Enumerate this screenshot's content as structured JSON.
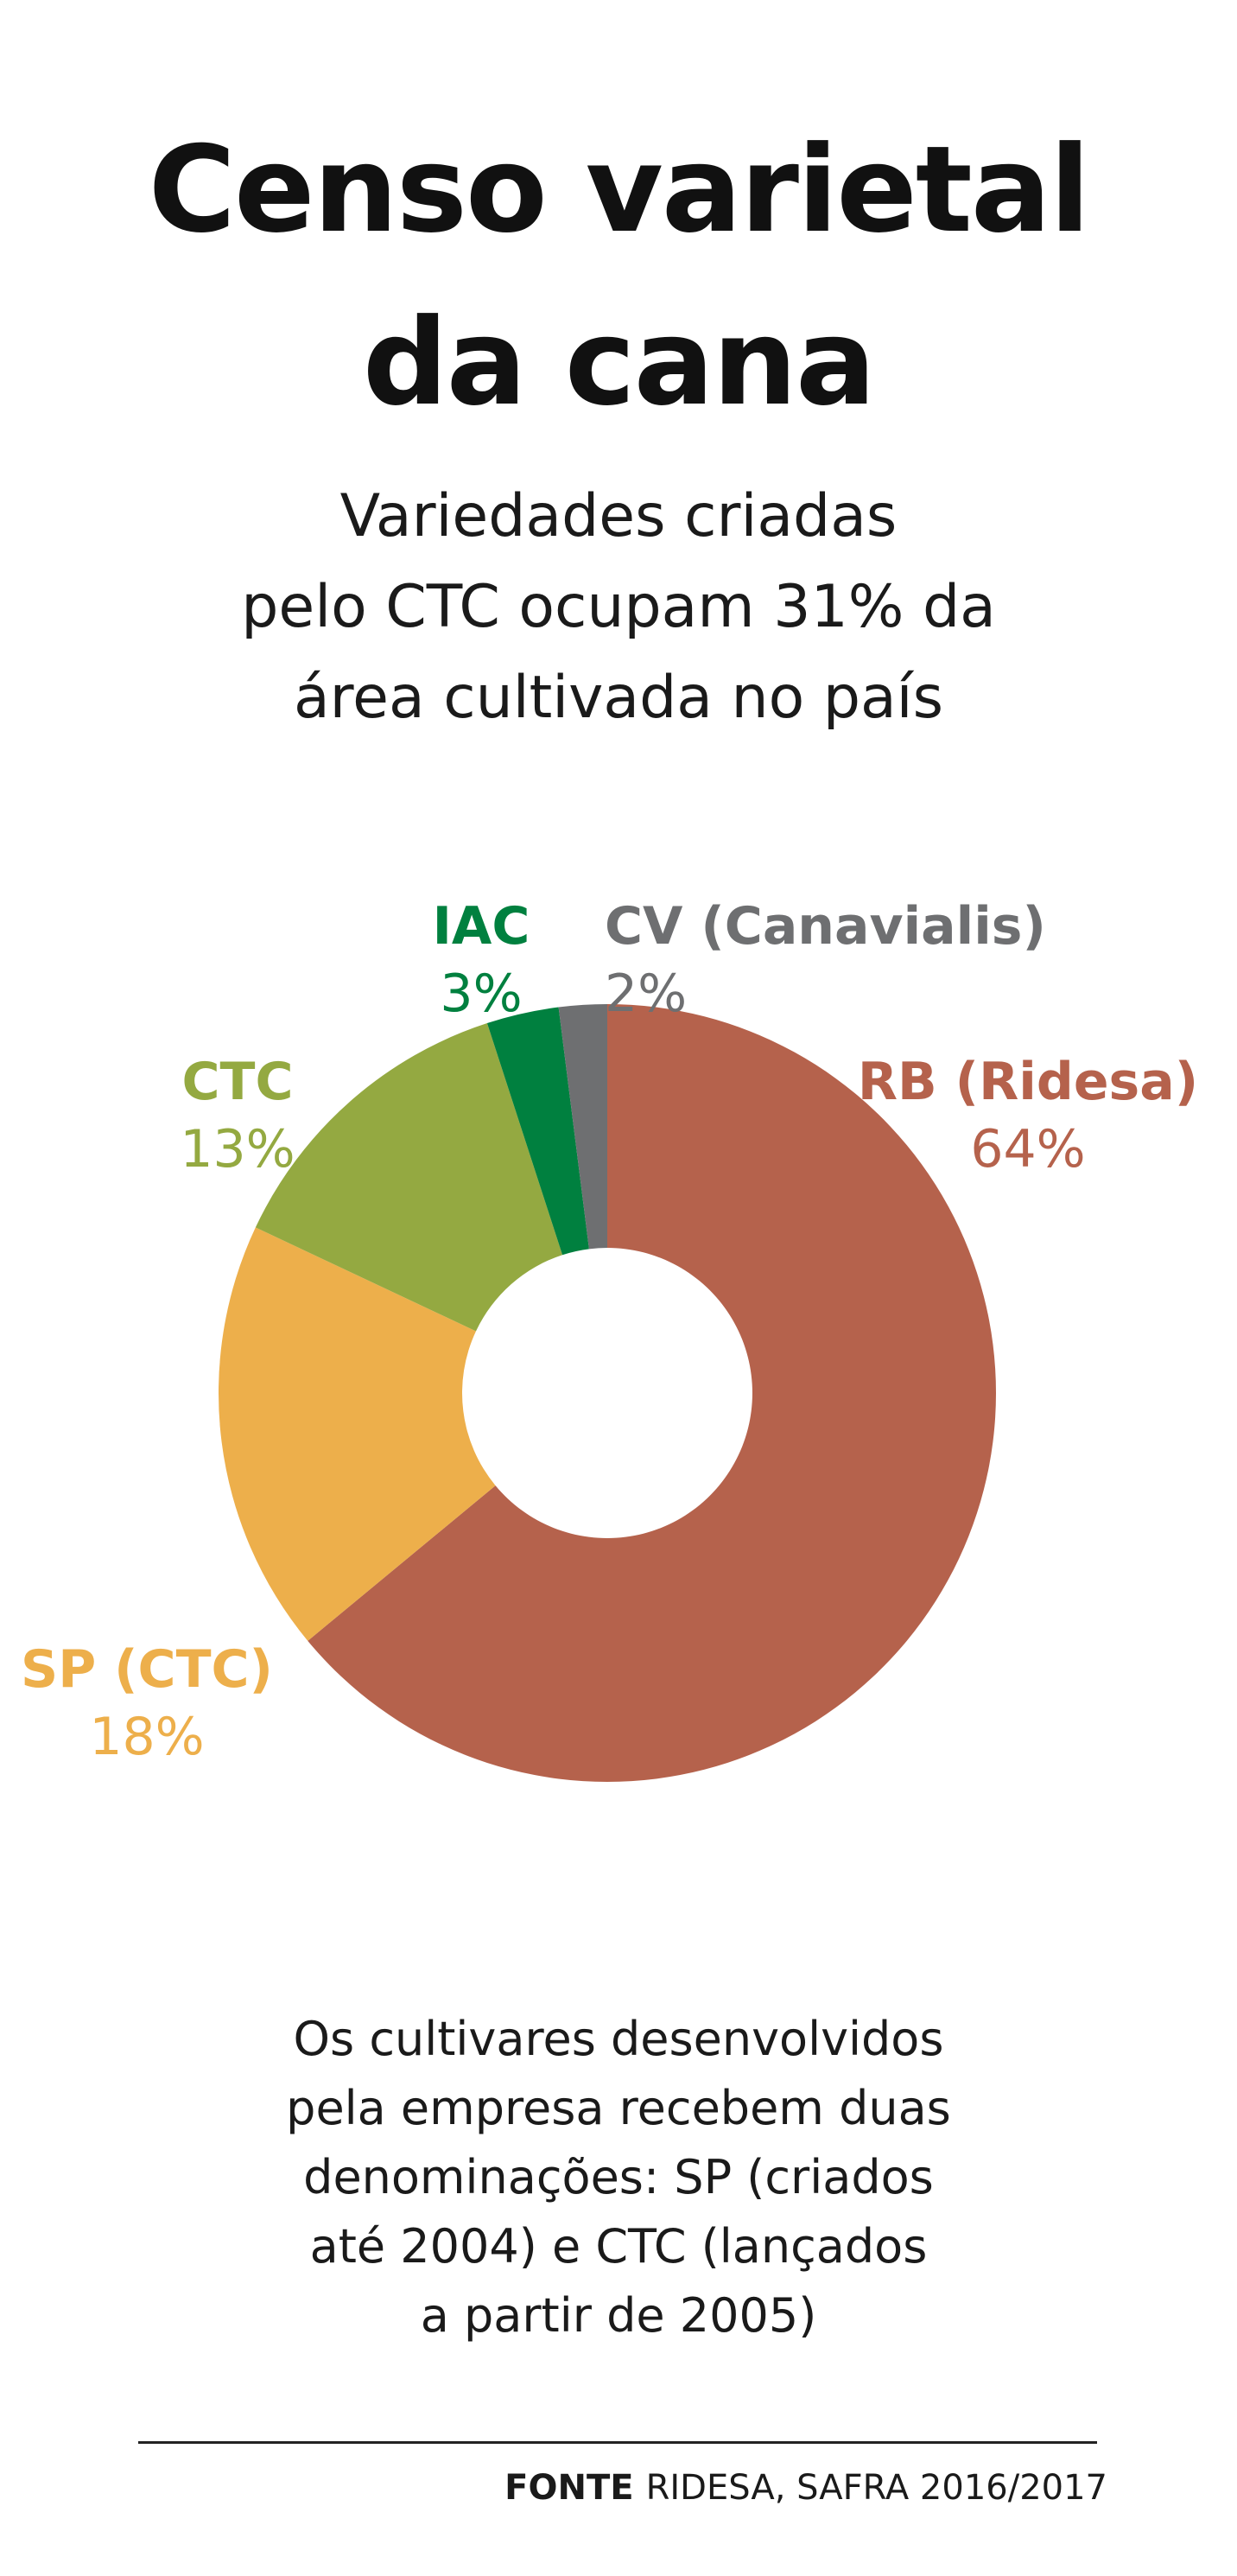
{
  "header": {
    "title_line1": "Censo varietal",
    "title_line2": "da cana",
    "subtitle_line1": "Variedades criadas",
    "subtitle_line2": "pelo CTC ocupam 31% da",
    "subtitle_line3": "área cultivada no país"
  },
  "chart_data": {
    "type": "pie",
    "donut": true,
    "categories": [
      "RB (Ridesa)",
      "SP (CTC)",
      "CTC",
      "IAC",
      "CV (Canavialis)"
    ],
    "values": [
      64,
      18,
      13,
      3,
      2
    ],
    "value_labels": [
      "64%",
      "18%",
      "13%",
      "3%",
      "2%"
    ],
    "colors": [
      "#B5624C",
      "#EDAF4B",
      "#94A941",
      "#00803F",
      "#6E6F71"
    ],
    "unit": "%",
    "start": "12 o'clock",
    "direction": "clockwise"
  },
  "note": {
    "line1": "Os cultivares desenvolvidos",
    "line2": "pela empresa recebem duas",
    "line3": "denominações: SP (criados",
    "line4": "até 2004) e CTC (lançados",
    "line5": "a partir de 2005)"
  },
  "source": {
    "label": "FONTE",
    "text": "RIDESA, SAFRA 2016/2017"
  }
}
